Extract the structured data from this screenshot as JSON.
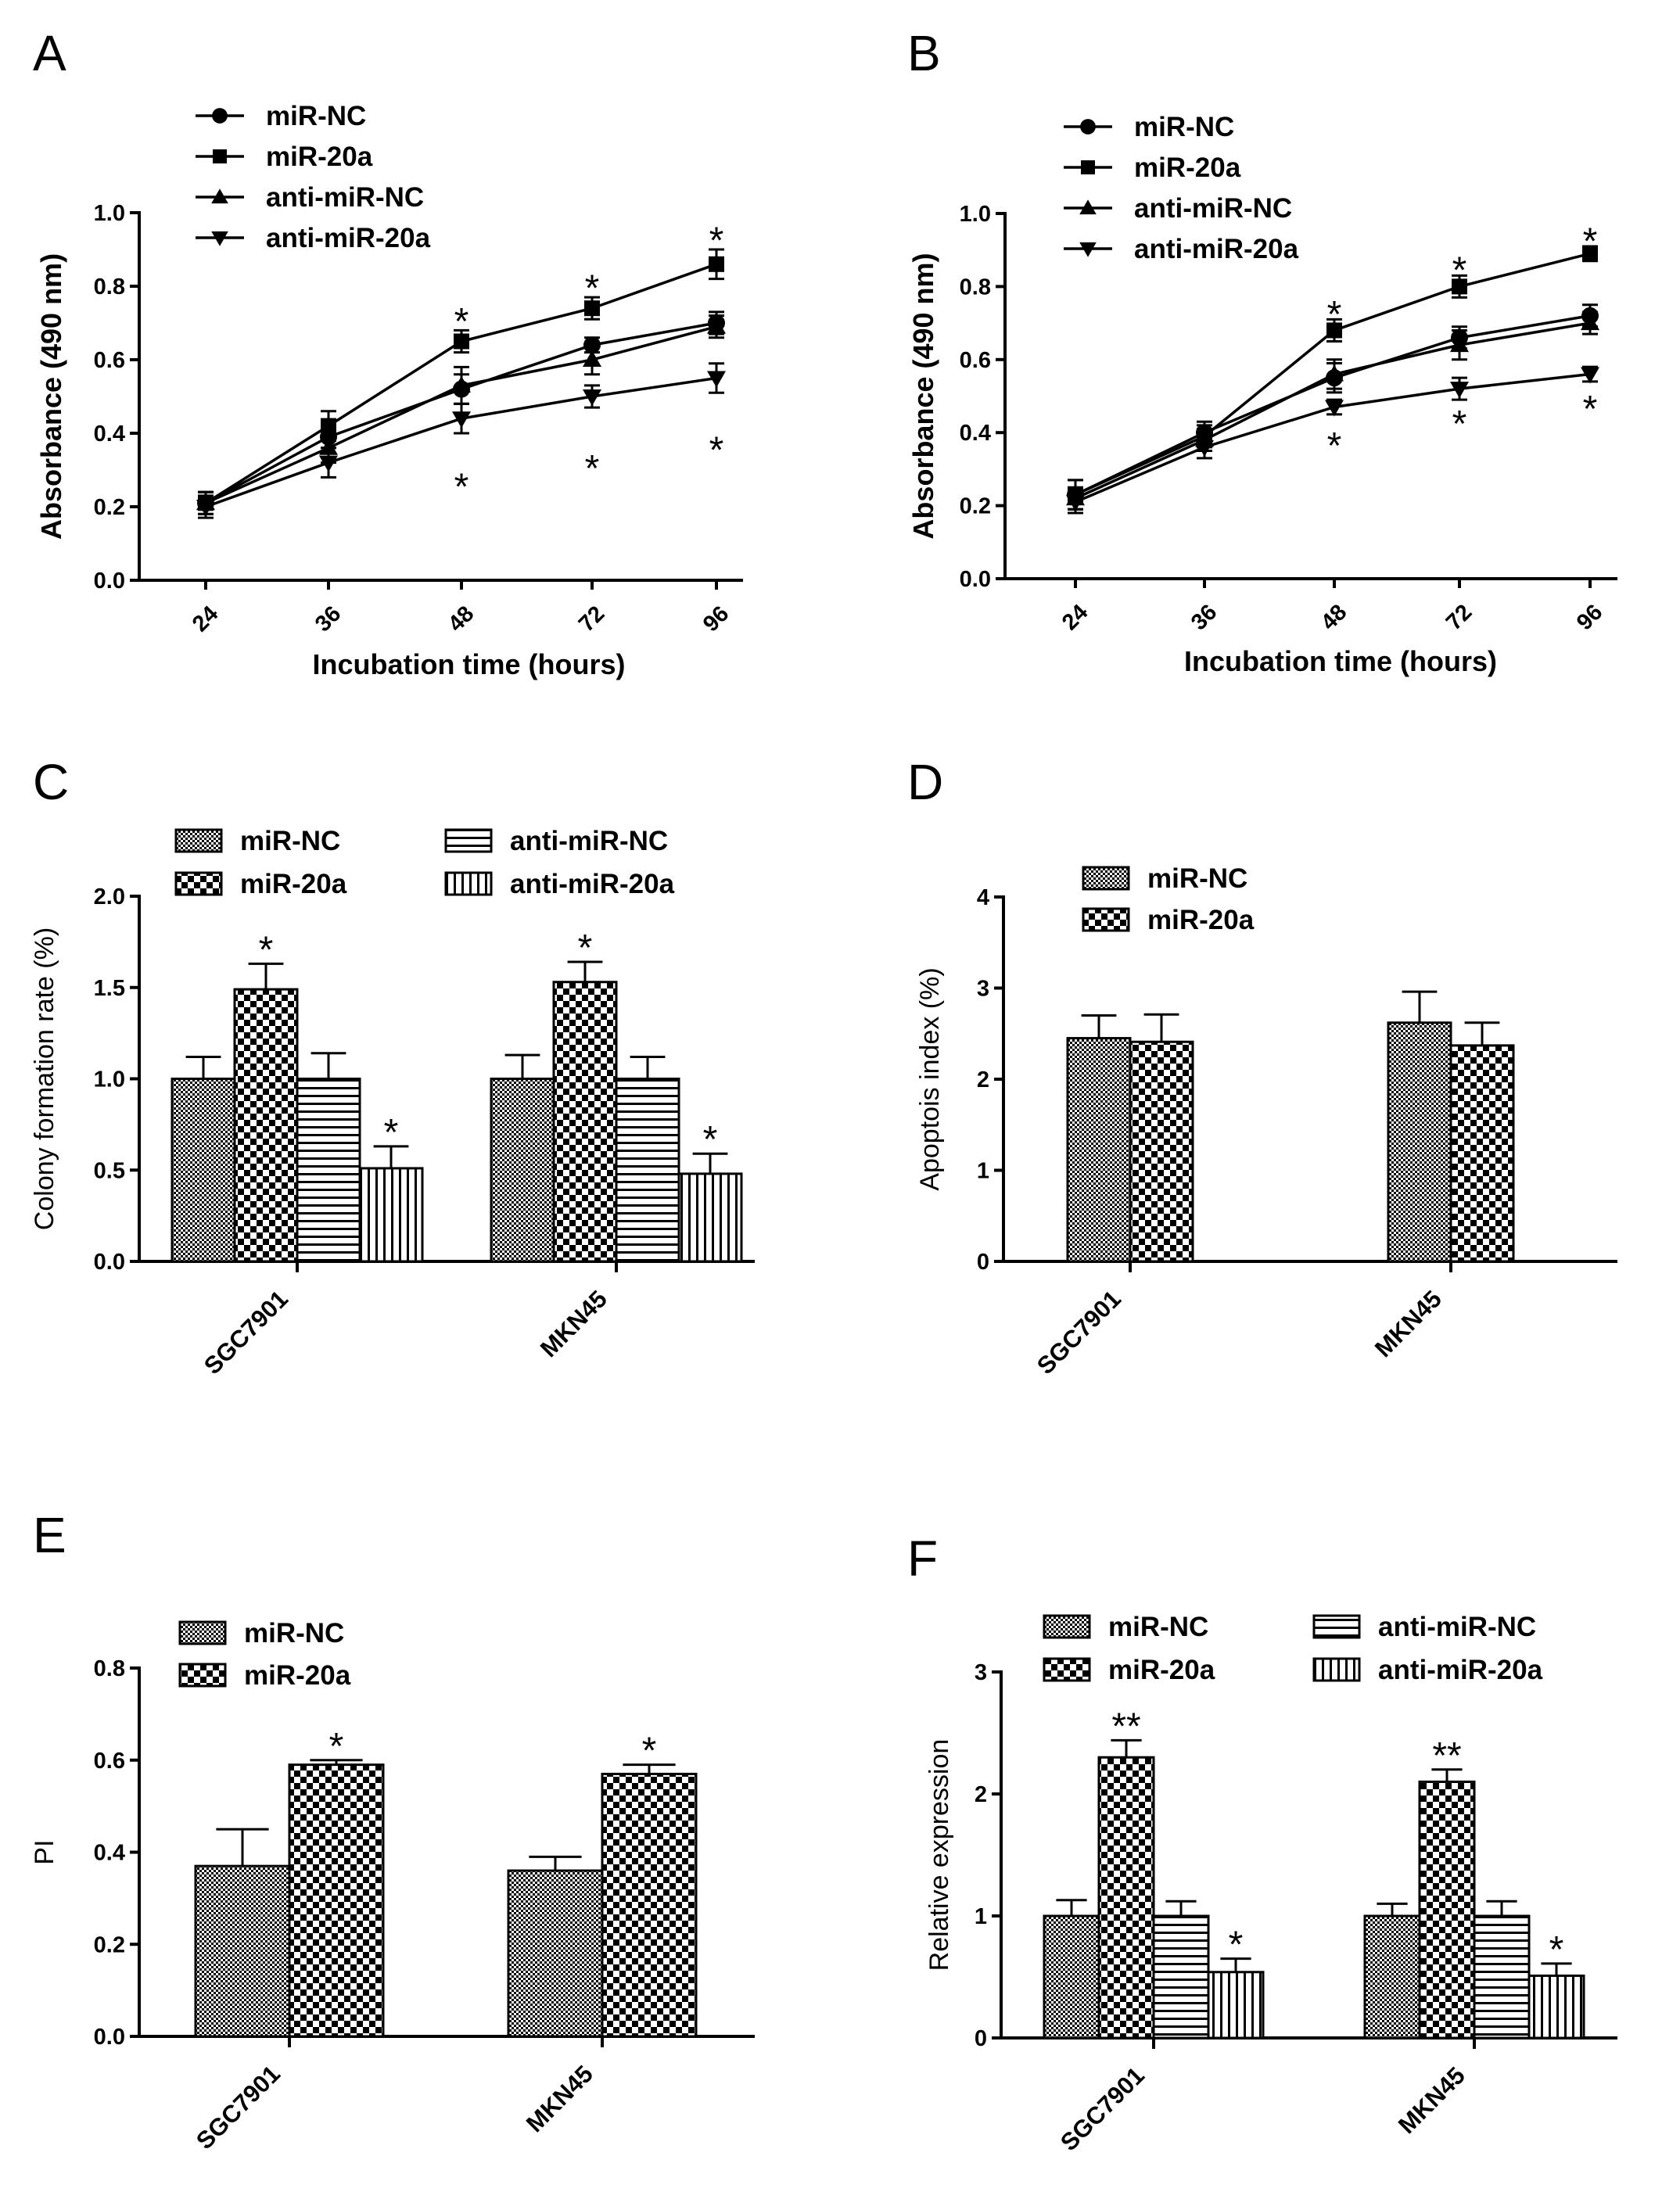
{
  "chart_data": [
    {
      "panel": "A",
      "type": "line",
      "xlabel": "Incubation time (hours)",
      "ylabel": "Absorbance (490 nm)",
      "categories": [
        "24",
        "36",
        "48",
        "72",
        "96"
      ],
      "ylim": [
        0,
        1.0
      ],
      "yticks": [
        "0.0",
        "0.2",
        "0.4",
        "0.6",
        "0.8",
        "1.0"
      ],
      "legend_position": "top-left",
      "series": [
        {
          "name": "miR-NC",
          "marker": "circle",
          "values": [
            0.21,
            0.39,
            0.52,
            0.64,
            0.7
          ],
          "errors": [
            0.03,
            0.03,
            0.04,
            0.02,
            0.03
          ]
        },
        {
          "name": "miR-20a",
          "marker": "square",
          "values": [
            0.21,
            0.42,
            0.65,
            0.74,
            0.86
          ],
          "errors": [
            0.03,
            0.04,
            0.03,
            0.03,
            0.04
          ]
        },
        {
          "name": "anti-miR-NC",
          "marker": "triangle-up",
          "values": [
            0.21,
            0.36,
            0.53,
            0.6,
            0.69
          ],
          "errors": [
            0.03,
            0.04,
            0.05,
            0.04,
            0.03
          ]
        },
        {
          "name": "anti-miR-20a",
          "marker": "triangle-down",
          "values": [
            0.2,
            0.32,
            0.44,
            0.5,
            0.55
          ],
          "errors": [
            0.03,
            0.04,
            0.04,
            0.03,
            0.04
          ]
        }
      ],
      "annotations": [
        {
          "text": "*",
          "category": "48",
          "value": 0.73
        },
        {
          "text": "*",
          "category": "72",
          "value": 0.82
        },
        {
          "text": "*",
          "category": "96",
          "value": 0.95
        },
        {
          "text": "*",
          "category": "48",
          "value": 0.28
        },
        {
          "text": "*",
          "category": "72",
          "value": 0.33
        },
        {
          "text": "*",
          "category": "96",
          "value": 0.38
        }
      ]
    },
    {
      "panel": "B",
      "type": "line",
      "xlabel": "Incubation time (hours)",
      "ylabel": "Absorbance (490 nm)",
      "categories": [
        "24",
        "36",
        "48",
        "72",
        "96"
      ],
      "ylim": [
        0,
        1.0
      ],
      "yticks": [
        "0.0",
        "0.2",
        "0.4",
        "0.6",
        "0.8",
        "1.0"
      ],
      "legend_position": "top-left",
      "series": [
        {
          "name": "miR-NC",
          "marker": "circle",
          "values": [
            0.23,
            0.4,
            0.55,
            0.66,
            0.72
          ],
          "errors": [
            0.04,
            0.03,
            0.04,
            0.03,
            0.03
          ]
        },
        {
          "name": "miR-20a",
          "marker": "square",
          "values": [
            0.23,
            0.39,
            0.68,
            0.8,
            0.89
          ],
          "errors": [
            0.04,
            0.03,
            0.03,
            0.03,
            0.02
          ]
        },
        {
          "name": "anti-miR-NC",
          "marker": "triangle-up",
          "values": [
            0.22,
            0.38,
            0.56,
            0.64,
            0.7
          ],
          "errors": [
            0.03,
            0.03,
            0.04,
            0.04,
            0.03
          ]
        },
        {
          "name": "anti-miR-20a",
          "marker": "triangle-down",
          "values": [
            0.21,
            0.36,
            0.47,
            0.52,
            0.56
          ],
          "errors": [
            0.03,
            0.03,
            0.02,
            0.03,
            0.02
          ]
        }
      ],
      "annotations": [
        {
          "text": "*",
          "category": "48",
          "value": 0.75
        },
        {
          "text": "*",
          "category": "72",
          "value": 0.87
        },
        {
          "text": "*",
          "category": "96",
          "value": 0.95
        },
        {
          "text": "*",
          "category": "48",
          "value": 0.39
        },
        {
          "text": "*",
          "category": "72",
          "value": 0.45
        },
        {
          "text": "*",
          "category": "96",
          "value": 0.49
        }
      ]
    },
    {
      "panel": "C",
      "type": "bar",
      "ylabel": "Colony formation rate (%)",
      "xlabel": "",
      "categories": [
        "SGC7901",
        "MKN45"
      ],
      "ylim": [
        0,
        2.0
      ],
      "yticks": [
        "0.0",
        "0.5",
        "1.0",
        "1.5",
        "2.0"
      ],
      "legend_position": "top",
      "series": [
        {
          "name": "miR-NC",
          "pattern": "fine",
          "values": [
            1.0,
            1.0
          ],
          "errors": [
            0.12,
            0.13
          ],
          "stars": [
            "",
            ""
          ]
        },
        {
          "name": "miR-20a",
          "pattern": "checker",
          "values": [
            1.49,
            1.53
          ],
          "errors": [
            0.14,
            0.11
          ],
          "stars": [
            "*",
            "*"
          ]
        },
        {
          "name": "anti-miR-NC",
          "pattern": "hlines",
          "values": [
            1.0,
            1.0
          ],
          "errors": [
            0.14,
            0.12
          ],
          "stars": [
            "",
            ""
          ]
        },
        {
          "name": "anti-miR-20a",
          "pattern": "vlines",
          "values": [
            0.51,
            0.48
          ],
          "errors": [
            0.12,
            0.11
          ],
          "stars": [
            "*",
            "*"
          ]
        }
      ]
    },
    {
      "panel": "D",
      "type": "bar",
      "ylabel": "Apoptois index (%)",
      "xlabel": "",
      "categories": [
        "SGC7901",
        "MKN45"
      ],
      "ylim": [
        0,
        4
      ],
      "yticks": [
        "0",
        "1",
        "2",
        "3",
        "4"
      ],
      "legend_position": "top",
      "series": [
        {
          "name": "miR-NC",
          "pattern": "fine",
          "values": [
            2.45,
            2.62
          ],
          "errors": [
            0.25,
            0.34
          ],
          "stars": [
            "",
            ""
          ]
        },
        {
          "name": "miR-20a",
          "pattern": "checker",
          "values": [
            2.41,
            2.37
          ],
          "errors": [
            0.3,
            0.25
          ],
          "stars": [
            "",
            ""
          ]
        }
      ]
    },
    {
      "panel": "E",
      "type": "bar",
      "ylabel": "PI",
      "xlabel": "",
      "categories": [
        "SGC7901",
        "MKN45"
      ],
      "ylim": [
        0,
        0.8
      ],
      "yticks": [
        "0.0",
        "0.2",
        "0.4",
        "0.6",
        "0.8"
      ],
      "legend_position": "top-left",
      "series": [
        {
          "name": "miR-NC",
          "pattern": "fine",
          "values": [
            0.37,
            0.36
          ],
          "errors": [
            0.08,
            0.03
          ],
          "stars": [
            "",
            ""
          ]
        },
        {
          "name": "miR-20a",
          "pattern": "checker",
          "values": [
            0.59,
            0.57
          ],
          "errors": [
            0.01,
            0.02
          ],
          "stars": [
            "*",
            "*"
          ]
        }
      ]
    },
    {
      "panel": "F",
      "type": "bar",
      "ylabel": "Relative expression",
      "xlabel": "",
      "categories": [
        "SGC7901",
        "MKN45"
      ],
      "ylim": [
        0,
        3
      ],
      "yticks": [
        "0",
        "1",
        "2",
        "3"
      ],
      "legend_position": "top",
      "series": [
        {
          "name": "miR-NC",
          "pattern": "fine",
          "values": [
            1.0,
            1.0
          ],
          "errors": [
            0.13,
            0.1
          ],
          "stars": [
            "",
            ""
          ]
        },
        {
          "name": "miR-20a",
          "pattern": "checker",
          "values": [
            2.3,
            2.1
          ],
          "errors": [
            0.14,
            0.1
          ],
          "stars": [
            "**",
            "**"
          ]
        },
        {
          "name": "anti-miR-NC",
          "pattern": "hlines",
          "values": [
            1.0,
            1.0
          ],
          "errors": [
            0.12,
            0.12
          ],
          "stars": [
            "",
            ""
          ]
        },
        {
          "name": "anti-miR-20a",
          "pattern": "vlines",
          "values": [
            0.54,
            0.51
          ],
          "errors": [
            0.11,
            0.1
          ],
          "stars": [
            "*",
            "*"
          ]
        }
      ]
    }
  ]
}
